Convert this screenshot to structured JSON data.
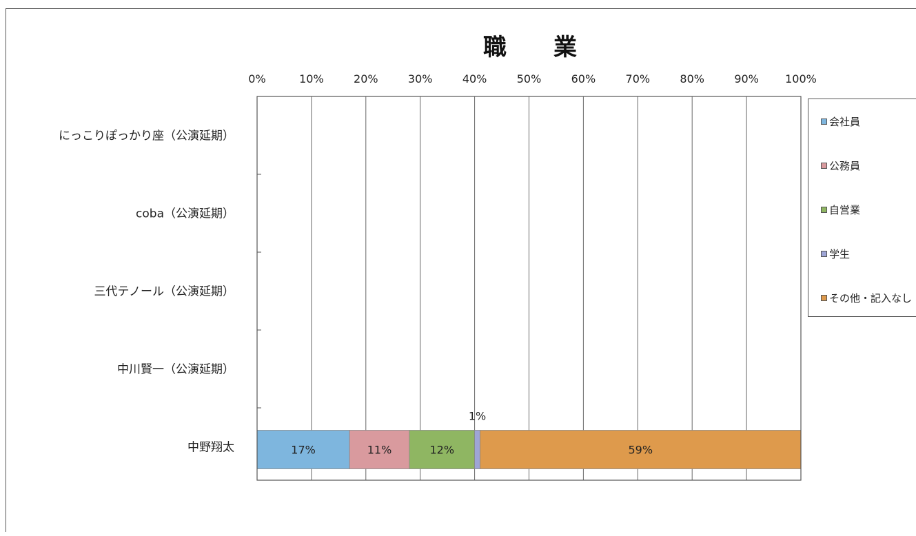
{
  "chart_data": {
    "type": "bar",
    "orientation": "horizontal",
    "stacked": "percent",
    "title": "職　　業",
    "categories": [
      "にっこりぽっかり座（公演延期）",
      "coba（公演延期）",
      "三代テノール（公演延期）",
      "中川賢一（公演延期）",
      "中野翔太"
    ],
    "series": [
      {
        "name": "会社員",
        "color": "#7eb6de",
        "values": [
          0,
          0,
          0,
          0,
          17
        ]
      },
      {
        "name": "公務員",
        "color": "#d99a9e",
        "values": [
          0,
          0,
          0,
          0,
          11
        ]
      },
      {
        "name": "自営業",
        "color": "#8fb662",
        "values": [
          0,
          0,
          0,
          0,
          12
        ]
      },
      {
        "name": "学生",
        "color": "#9ea5d6",
        "values": [
          0,
          0,
          0,
          0,
          1
        ]
      },
      {
        "name": "その他・記入なし",
        "color": "#de9a4c",
        "values": [
          0,
          0,
          0,
          0,
          59
        ]
      }
    ],
    "data_labels": [
      "17%",
      "11%",
      "12%",
      "1%",
      "59%"
    ],
    "xlim": [
      0,
      100
    ],
    "xticks": [
      "0%",
      "10%",
      "20%",
      "30%",
      "40%",
      "50%",
      "60%",
      "70%",
      "80%",
      "90%",
      "100%"
    ],
    "grid": true,
    "legend_position": "right",
    "xaxis_position": "top"
  }
}
